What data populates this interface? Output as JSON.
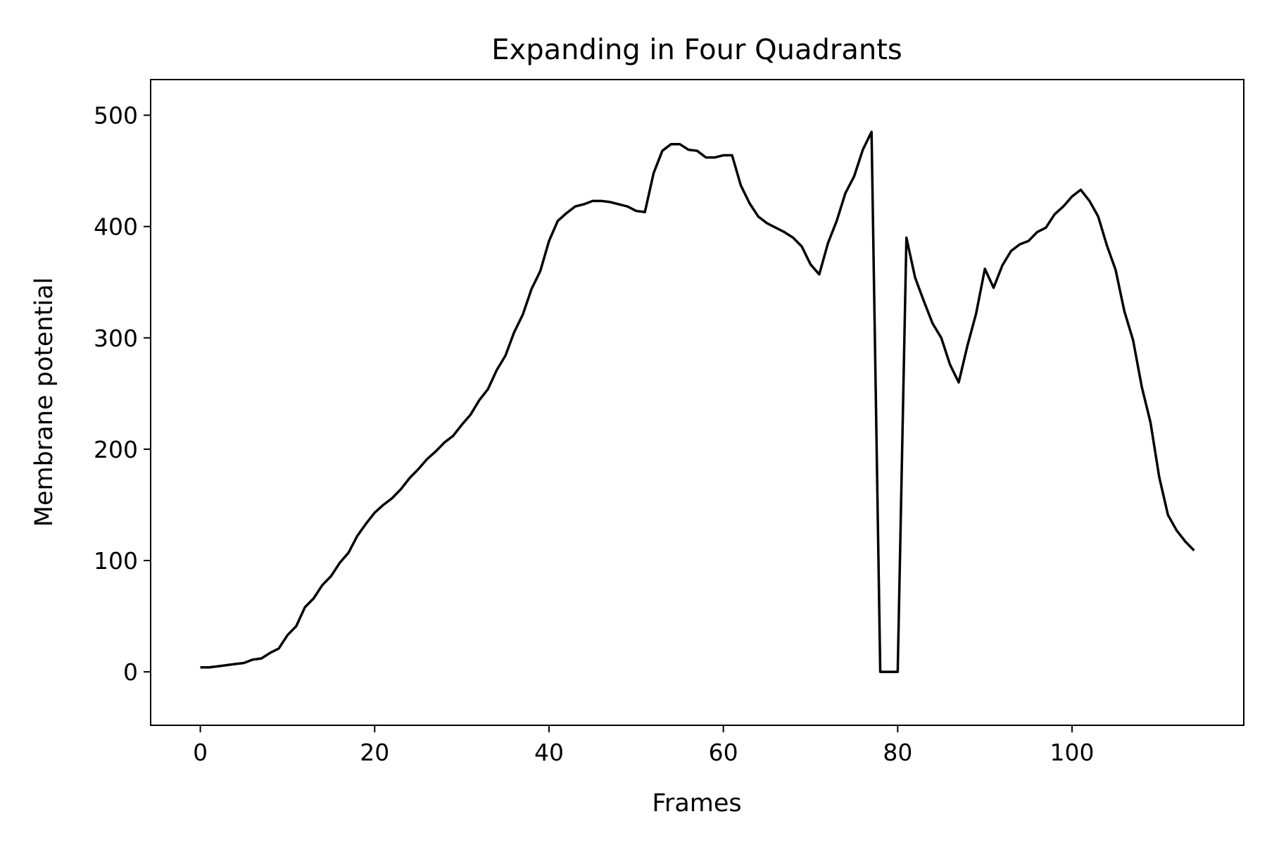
{
  "chart_data": {
    "type": "line",
    "title": "Expanding in Four Quadrants",
    "xlabel": "Frames",
    "ylabel": "Membrane potential",
    "xlim": [
      -5.7,
      119.7
    ],
    "ylim": [
      -48,
      532
    ],
    "xticks": [
      0,
      20,
      40,
      60,
      80,
      100
    ],
    "yticks": [
      0,
      100,
      200,
      300,
      400,
      500
    ],
    "grid": false,
    "line_color": "#000000",
    "series": [
      {
        "x": [
          0,
          1,
          2,
          3,
          4,
          5,
          6,
          7,
          8,
          9,
          10,
          11,
          12,
          13,
          14,
          15,
          16,
          17,
          18,
          19,
          20,
          21,
          22,
          23,
          24,
          25,
          26,
          27,
          28,
          29,
          30,
          31,
          32,
          33,
          34,
          35,
          36,
          37,
          38,
          39,
          40,
          41,
          42,
          43,
          44,
          45,
          46,
          47,
          48,
          49,
          50,
          51,
          52,
          53,
          54,
          55,
          56,
          57,
          58,
          59,
          60,
          61,
          62,
          63,
          64,
          65,
          66,
          67,
          68,
          69,
          70,
          71,
          72,
          73,
          74,
          75,
          76,
          77,
          78,
          79,
          80,
          81,
          82,
          83,
          84,
          85,
          86,
          87,
          88,
          89,
          90,
          91,
          92,
          93,
          94,
          95,
          96,
          97,
          98,
          99,
          100,
          101,
          102,
          103,
          104,
          105,
          106,
          107,
          108,
          109,
          110,
          111,
          112,
          113,
          114
        ],
        "values": [
          4,
          4,
          5,
          6,
          7,
          8,
          11,
          12,
          17,
          21,
          33,
          41,
          58,
          66,
          78,
          86,
          98,
          107,
          122,
          133,
          143,
          150,
          156,
          164,
          174,
          182,
          191,
          198,
          206,
          212,
          222,
          231,
          244,
          254,
          271,
          284,
          305,
          321,
          344,
          360,
          387,
          405,
          412,
          418,
          420,
          423,
          423,
          422,
          420,
          418,
          414,
          413,
          448,
          468,
          474,
          474,
          469,
          468,
          462,
          462,
          464,
          464,
          437,
          421,
          409,
          403,
          399,
          395,
          390,
          382,
          366,
          357,
          385,
          405,
          430,
          445,
          469,
          485,
          0,
          0,
          0,
          390,
          354,
          333,
          313,
          300,
          276,
          260,
          293,
          322,
          362,
          345,
          365,
          378,
          384,
          387,
          395,
          399,
          411,
          418,
          427,
          433,
          423,
          409,
          383,
          361,
          324,
          298,
          256,
          224,
          175,
          141,
          127,
          117,
          109
        ]
      }
    ]
  }
}
